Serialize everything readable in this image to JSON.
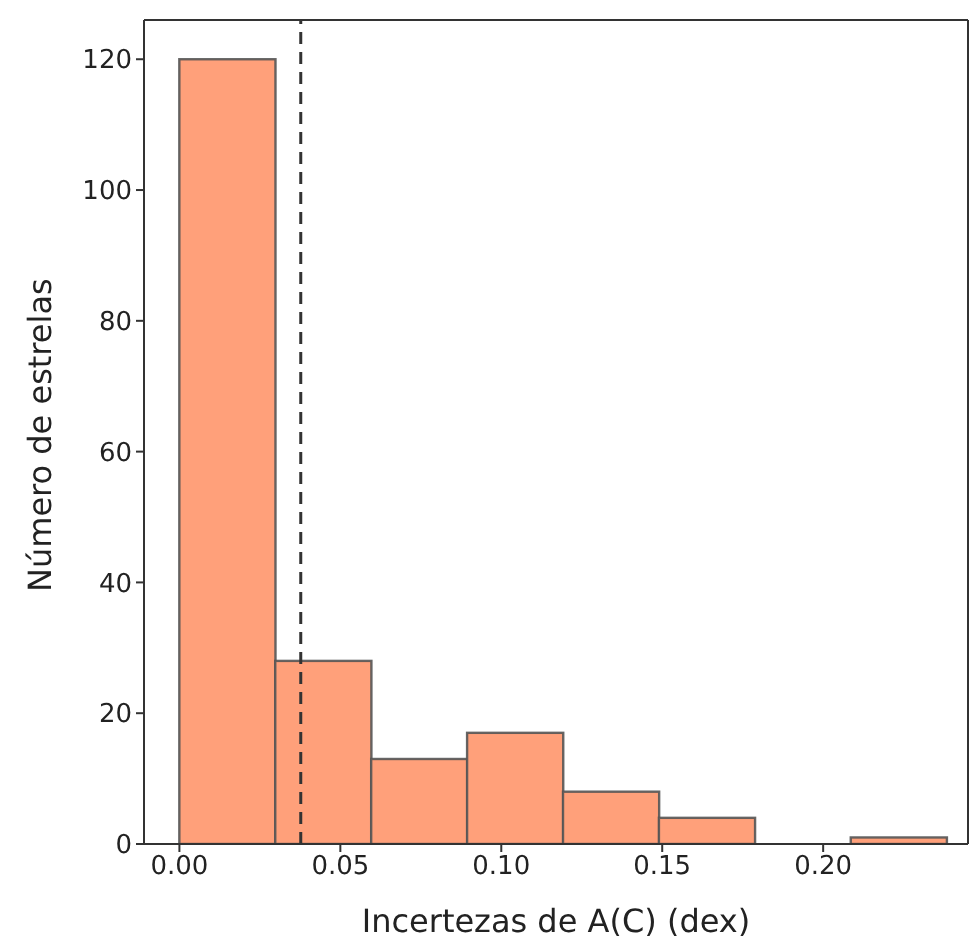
{
  "chart_data": {
    "type": "histogram",
    "xlabel": "Incertezas de A(C) (dex)",
    "ylabel": "Número de estrelas",
    "bins": [
      0,
      0.0298,
      0.0596,
      0.0894,
      0.1192,
      0.149,
      0.1788,
      0.2086,
      0.2384
    ],
    "values": [
      120,
      28,
      13,
      17,
      8,
      4,
      0,
      1
    ],
    "color": "#ffa07a",
    "xlim": [
      -0.011,
      0.245
    ],
    "xticks": [
      {
        "value": 0,
        "label": "0.00"
      },
      0.05,
      {
        "value": 0.1,
        "label": "0.10"
      },
      0.15,
      {
        "value": 0.2,
        "label": "0.20"
      }
    ],
    "ylim": [
      0,
      126
    ],
    "yticks": [
      0,
      20,
      40,
      60,
      80,
      100,
      120
    ],
    "ref_lines": [
      {
        "axis": "x",
        "value": 0.0377,
        "color": "#333333",
        "line_style": "dashed"
      }
    ],
    "grid": false
  }
}
